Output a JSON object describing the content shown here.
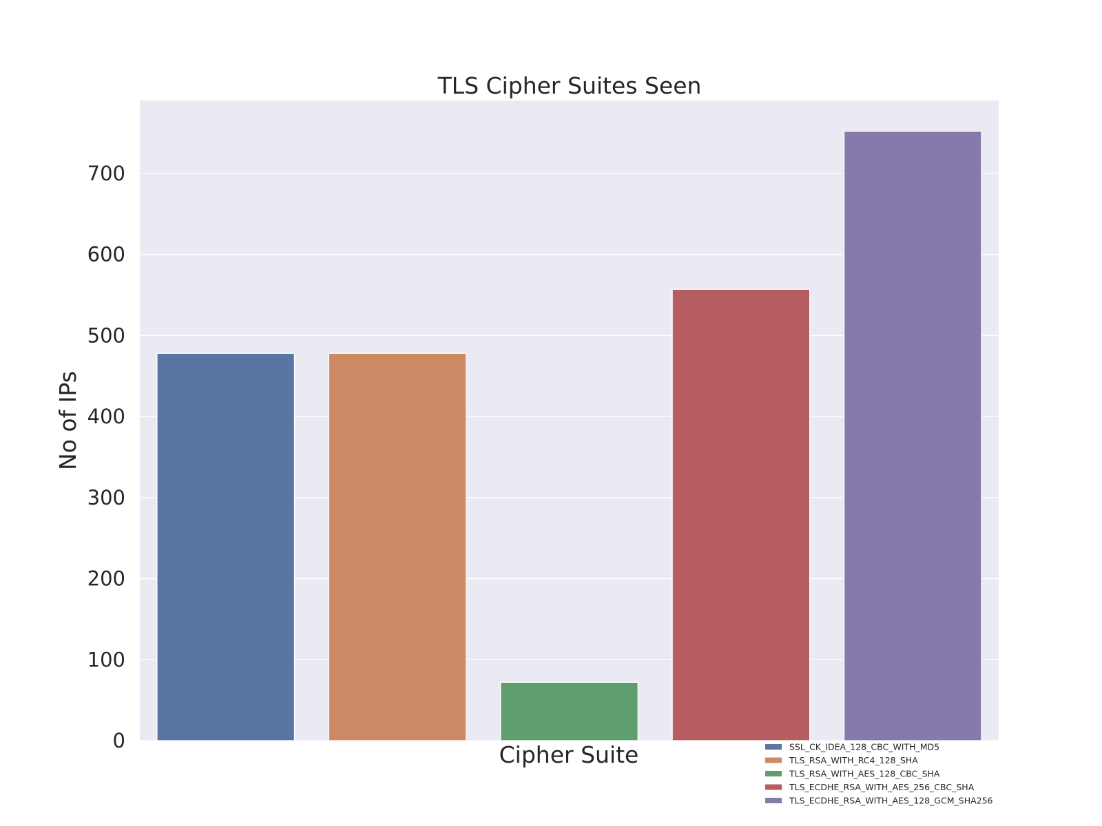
{
  "chart_data": {
    "type": "bar",
    "title": "TLS Cipher Suites Seen",
    "xlabel": "Cipher Suite",
    "ylabel": "No of IPs",
    "ylim": [
      0,
      790
    ],
    "yticks": [
      0,
      100,
      200,
      300,
      400,
      500,
      600,
      700
    ],
    "grid": true,
    "legend_position": "bottom-right",
    "background_color": "#EAEAF2",
    "categories": [
      "SSL_CK_IDEA_128_CBC_WITH_MD5",
      "TLS_RSA_WITH_RC4_128_SHA",
      "TLS_RSA_WITH_AES_128_CBC_SHA",
      "TLS_ECDHE_RSA_WITH_AES_256_CBC_SHA",
      "TLS_ECDHE_RSA_WITH_AES_128_GCM_SHA256"
    ],
    "values": [
      478,
      478,
      72,
      557,
      752
    ],
    "colors": [
      "#5975A4",
      "#CC8963",
      "#5F9E6E",
      "#B55D60",
      "#857AAB"
    ]
  }
}
